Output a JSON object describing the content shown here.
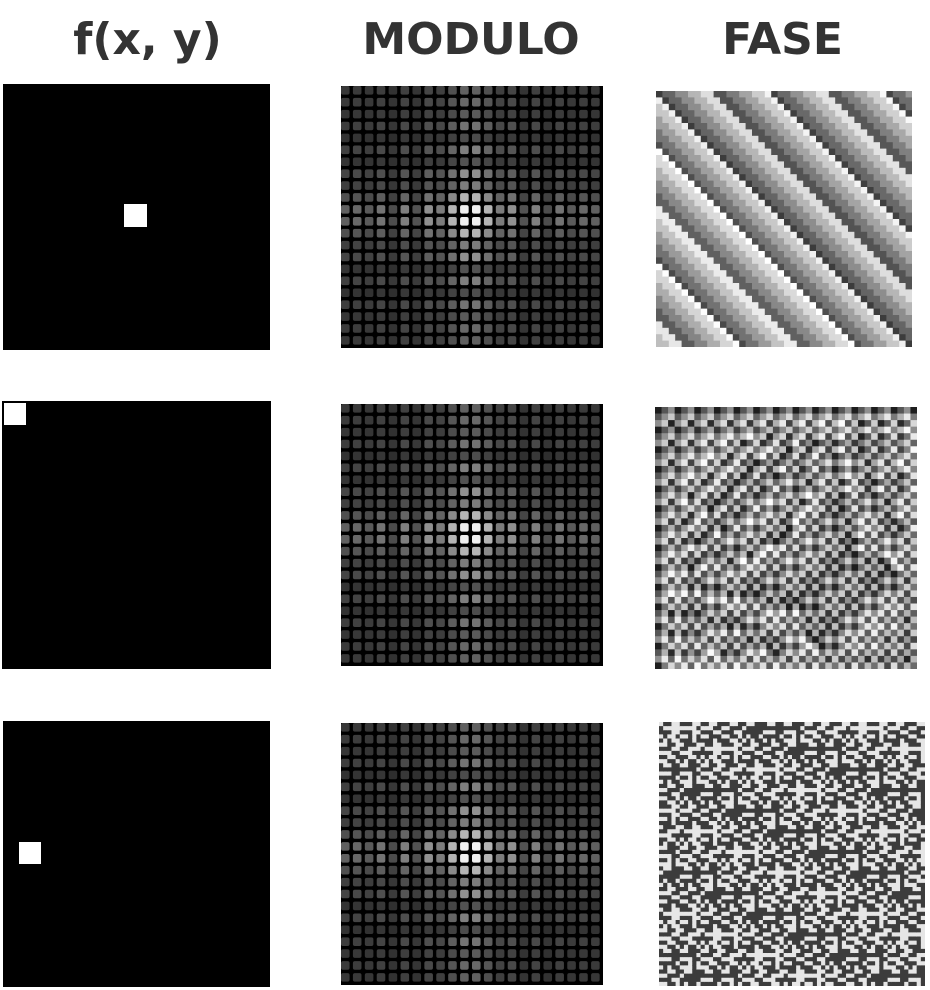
{
  "headers": {
    "signal": "f(x, y)",
    "magnitude": "MODULO",
    "phase": "FASE"
  },
  "rows": [
    {
      "impulse_position": "center"
    },
    {
      "impulse_position": "top-left corner"
    },
    {
      "impulse_position": "left, lower-middle"
    }
  ],
  "colors": {
    "title_text": "#333333",
    "background": "#000000",
    "impulse": "#ffffff"
  }
}
